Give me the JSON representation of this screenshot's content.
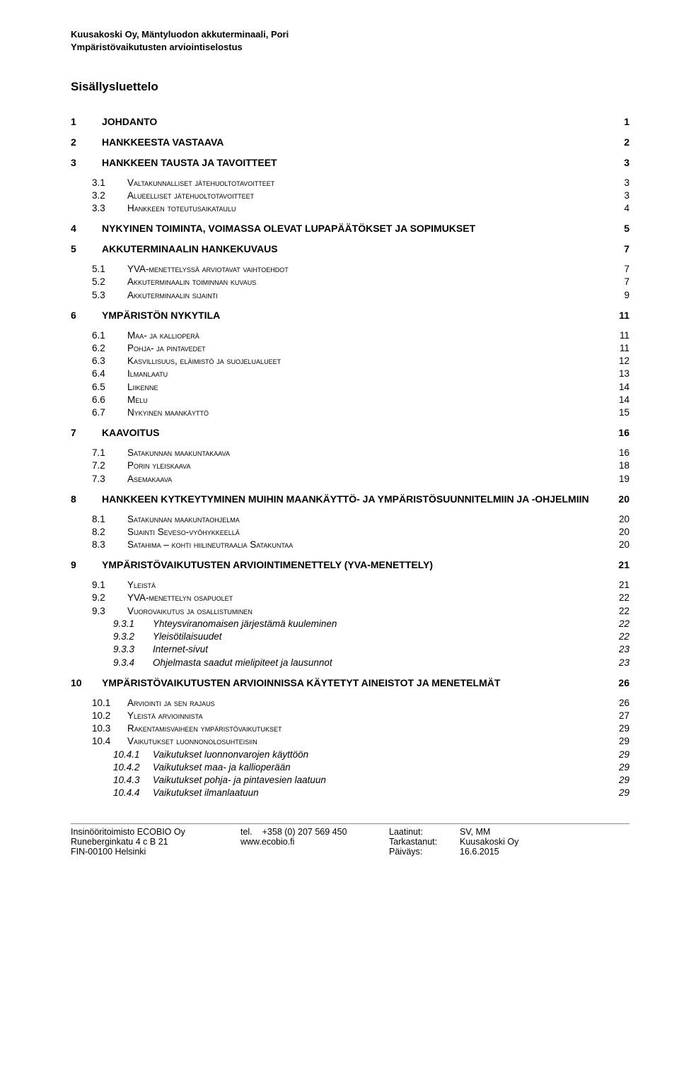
{
  "header": {
    "line1": "Kuusakoski Oy, Mäntyluodon akkuterminaali, Pori",
    "line2": "Ympäristövaikutusten arviointiselostus"
  },
  "toc_title": "Sisällysluettelo",
  "toc": [
    {
      "lvl": 1,
      "num": "1",
      "label": "JOHDANTO",
      "page": "1"
    },
    {
      "lvl": 1,
      "num": "2",
      "label": "HANKKEESTA VASTAAVA",
      "page": "2"
    },
    {
      "lvl": 1,
      "num": "3",
      "label": "HANKKEEN TAUSTA JA TAVOITTEET",
      "page": "3"
    },
    {
      "lvl": 2,
      "num": "3.1",
      "label": "Valtakunnalliset jätehuoltotavoitteet",
      "page": "3",
      "sc": true
    },
    {
      "lvl": 2,
      "num": "3.2",
      "label": "Alueelliset jätehuoltotavoitteet",
      "page": "3",
      "sc": true
    },
    {
      "lvl": 2,
      "num": "3.3",
      "label": "Hankkeen toteutusaikataulu",
      "page": "4",
      "sc": true
    },
    {
      "lvl": 1,
      "num": "4",
      "label": "NYKYINEN TOIMINTA, VOIMASSA OLEVAT LUPAPÄÄTÖKSET JA SOPIMUKSET",
      "page": "5"
    },
    {
      "lvl": 1,
      "num": "5",
      "label": "AKKUTERMINAALIN HANKEKUVAUS",
      "page": "7"
    },
    {
      "lvl": 2,
      "num": "5.1",
      "label": "YVA-menettelyssä arviotavat vaihtoehdot",
      "page": "7",
      "sc": true
    },
    {
      "lvl": 2,
      "num": "5.2",
      "label": "Akkuterminaalin toiminnan kuvaus",
      "page": "7",
      "sc": true
    },
    {
      "lvl": 2,
      "num": "5.3",
      "label": "Akkuterminaalin sijainti",
      "page": "9",
      "sc": true
    },
    {
      "lvl": 1,
      "num": "6",
      "label": "YMPÄRISTÖN NYKYTILA",
      "page": "11"
    },
    {
      "lvl": 2,
      "num": "6.1",
      "label": "Maa- ja kallioperä",
      "page": "11",
      "sc": true
    },
    {
      "lvl": 2,
      "num": "6.2",
      "label": "Pohja- ja pintavedet",
      "page": "11",
      "sc": true
    },
    {
      "lvl": 2,
      "num": "6.3",
      "label": "Kasvillisuus, eläimistö ja suojelualueet",
      "page": "12",
      "sc": true
    },
    {
      "lvl": 2,
      "num": "6.4",
      "label": "Ilmanlaatu",
      "page": "13",
      "sc": true
    },
    {
      "lvl": 2,
      "num": "6.5",
      "label": "Liikenne",
      "page": "14",
      "sc": true
    },
    {
      "lvl": 2,
      "num": "6.6",
      "label": "Melu",
      "page": "14",
      "sc": true
    },
    {
      "lvl": 2,
      "num": "6.7",
      "label": "Nykyinen maankäyttö",
      "page": "15",
      "sc": true
    },
    {
      "lvl": 1,
      "num": "7",
      "label": "KAAVOITUS",
      "page": "16"
    },
    {
      "lvl": 2,
      "num": "7.1",
      "label": "Satakunnan maakuntakaava",
      "page": "16",
      "sc": true
    },
    {
      "lvl": 2,
      "num": "7.2",
      "label": "Porin yleiskaava",
      "page": "18",
      "sc": true
    },
    {
      "lvl": 2,
      "num": "7.3",
      "label": "Asemakaava",
      "page": "19",
      "sc": true
    },
    {
      "lvl": 1,
      "num": "8",
      "label": "HANKKEEN KYTKEYTYMINEN MUIHIN MAANKÄYTTÖ- JA YMPÄRISTÖSUUNNITELMIIN JA -OHJELMIIN",
      "page": "20"
    },
    {
      "lvl": 2,
      "num": "8.1",
      "label": "Satakunnan maakuntaohjelma",
      "page": "20",
      "sc": true
    },
    {
      "lvl": 2,
      "num": "8.2",
      "label": "Sijainti Seveso-vyöhykkeellä",
      "page": "20",
      "sc": true
    },
    {
      "lvl": 2,
      "num": "8.3",
      "label": "Satahima – kohti hiilineutraalia Satakuntaa",
      "page": "20",
      "sc": true
    },
    {
      "lvl": 1,
      "num": "9",
      "label": "YMPÄRISTÖVAIKUTUSTEN ARVIOINTIMENETTELY (YVA-MENETTELY)",
      "page": "21"
    },
    {
      "lvl": 2,
      "num": "9.1",
      "label": "Yleistä",
      "page": "21",
      "sc": true
    },
    {
      "lvl": 2,
      "num": "9.2",
      "label": "YVA-menettelyn osapuolet",
      "page": "22",
      "sc": true
    },
    {
      "lvl": 2,
      "num": "9.3",
      "label": "Vuorovaikutus ja osallistuminen",
      "page": "22",
      "sc": true
    },
    {
      "lvl": 3,
      "num": "9.3.1",
      "label": "Yhteysviranomaisen järjestämä kuuleminen",
      "page": "22"
    },
    {
      "lvl": 3,
      "num": "9.3.2",
      "label": "Yleisötilaisuudet",
      "page": "22"
    },
    {
      "lvl": 3,
      "num": "9.3.3",
      "label": "Internet-sivut",
      "page": "23"
    },
    {
      "lvl": 3,
      "num": "9.3.4",
      "label": "Ohjelmasta saadut mielipiteet ja lausunnot",
      "page": "23"
    },
    {
      "lvl": 1,
      "num": "10",
      "label": "YMPÄRISTÖVAIKUTUSTEN ARVIOINNISSA KÄYTETYT AINEISTOT JA MENETELMÄT",
      "page": "26"
    },
    {
      "lvl": 2,
      "num": "10.1",
      "label": "Arviointi ja sen rajaus",
      "page": "26",
      "sc": true
    },
    {
      "lvl": 2,
      "num": "10.2",
      "label": "Yleistä arvioinnista",
      "page": "27",
      "sc": true
    },
    {
      "lvl": 2,
      "num": "10.3",
      "label": "Rakentamisvaiheen ympäristövaikutukset",
      "page": "29",
      "sc": true
    },
    {
      "lvl": 2,
      "num": "10.4",
      "label": "Vaikutukset luonnonolosuhteisiin",
      "page": "29",
      "sc": true
    },
    {
      "lvl": 3,
      "num": "10.4.1",
      "label": "Vaikutukset luonnonvarojen käyttöön",
      "page": "29"
    },
    {
      "lvl": 3,
      "num": "10.4.2",
      "label": "Vaikutukset maa- ja kallioperään",
      "page": "29"
    },
    {
      "lvl": 3,
      "num": "10.4.3",
      "label": "Vaikutukset pohja- ja pintavesien laatuun",
      "page": "29"
    },
    {
      "lvl": 3,
      "num": "10.4.4",
      "label": "Vaikutukset ilmanlaatuun",
      "page": "29"
    }
  ],
  "footer": {
    "org": "Insinööritoimisto ECOBIO Oy",
    "addr1": "Runeberginkatu 4 c B 21",
    "addr2": "FIN-00100 Helsinki",
    "tel_label": "tel.",
    "tel": "+358 (0) 207 569 450",
    "web": "www.ecobio.fi",
    "laatinut_label": "Laatinut:",
    "laatinut": "SV, MM",
    "tarkastanut_label": "Tarkastanut:",
    "tarkastanut": "Kuusakoski Oy",
    "paivays_label": "Päiväys:",
    "paivays": "16.6.2015"
  }
}
